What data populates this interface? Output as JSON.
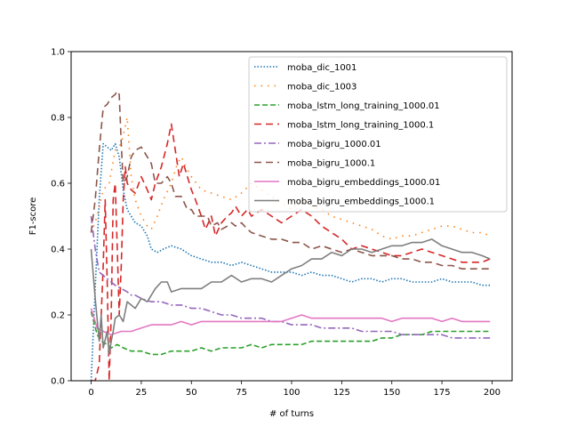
{
  "chart_data": {
    "type": "line",
    "xlabel": "# of turns",
    "ylabel": "F1-score",
    "xlim": [
      -10,
      210
    ],
    "ylim": [
      0.0,
      1.0
    ],
    "xticks": [
      0,
      25,
      50,
      75,
      100,
      125,
      150,
      175,
      200
    ],
    "yticks": [
      0.0,
      0.2,
      0.4,
      0.6,
      0.8,
      1.0
    ],
    "xtick_labels": [
      "0",
      "25",
      "50",
      "75",
      "100",
      "125",
      "150",
      "175",
      "200"
    ],
    "ytick_labels": [
      "0.0",
      "0.2",
      "0.4",
      "0.6",
      "0.8",
      "1.0"
    ],
    "grid": false,
    "legend_position": "upper right",
    "series": [
      {
        "name": "moba_dic_1001",
        "color": "#1f77b4",
        "dash": "dotted",
        "x": [
          0,
          2,
          4,
          6,
          8,
          10,
          12,
          14,
          16,
          18,
          20,
          22,
          25,
          28,
          30,
          33,
          36,
          40,
          45,
          50,
          55,
          60,
          65,
          70,
          75,
          80,
          85,
          90,
          95,
          100,
          105,
          110,
          115,
          120,
          125,
          130,
          135,
          140,
          145,
          150,
          155,
          160,
          165,
          170,
          175,
          180,
          185,
          190,
          195,
          199
        ],
        "y": [
          0.0,
          0.28,
          0.55,
          0.72,
          0.71,
          0.7,
          0.72,
          0.68,
          0.58,
          0.52,
          0.5,
          0.48,
          0.47,
          0.44,
          0.4,
          0.39,
          0.4,
          0.41,
          0.4,
          0.38,
          0.37,
          0.36,
          0.36,
          0.35,
          0.36,
          0.35,
          0.34,
          0.33,
          0.33,
          0.33,
          0.32,
          0.33,
          0.32,
          0.32,
          0.31,
          0.3,
          0.31,
          0.31,
          0.3,
          0.31,
          0.31,
          0.3,
          0.3,
          0.3,
          0.31,
          0.3,
          0.3,
          0.3,
          0.29,
          0.29
        ]
      },
      {
        "name": "moba_dic_1003",
        "color": "#ff7f0e",
        "dash": "dotted-sparse",
        "x": [
          0,
          3,
          6,
          9,
          12,
          15,
          18,
          20,
          22,
          25,
          28,
          30,
          33,
          36,
          40,
          43,
          45,
          48,
          50,
          55,
          60,
          65,
          70,
          75,
          80,
          85,
          90,
          95,
          100,
          105,
          110,
          115,
          120,
          125,
          130,
          135,
          140,
          145,
          150,
          155,
          160,
          165,
          170,
          175,
          180,
          185,
          190,
          195,
          199
        ],
        "y": [
          0.45,
          0.5,
          0.58,
          0.6,
          0.7,
          0.72,
          0.8,
          0.62,
          0.55,
          0.5,
          0.47,
          0.46,
          0.5,
          0.55,
          0.6,
          0.66,
          0.68,
          0.64,
          0.62,
          0.58,
          0.57,
          0.56,
          0.55,
          0.57,
          0.6,
          0.58,
          0.56,
          0.54,
          0.52,
          0.55,
          0.53,
          0.52,
          0.5,
          0.49,
          0.48,
          0.47,
          0.46,
          0.44,
          0.43,
          0.44,
          0.44,
          0.45,
          0.46,
          0.47,
          0.47,
          0.46,
          0.45,
          0.45,
          0.44
        ]
      },
      {
        "name": "moba_lstm_long_training_1000.01",
        "color": "#2ca02c",
        "dash": "dashed",
        "x": [
          0,
          3,
          5,
          8,
          10,
          13,
          16,
          20,
          25,
          30,
          35,
          40,
          45,
          50,
          55,
          60,
          65,
          70,
          75,
          80,
          85,
          90,
          95,
          100,
          105,
          110,
          115,
          120,
          125,
          130,
          135,
          140,
          145,
          150,
          155,
          160,
          165,
          170,
          175,
          180,
          185,
          190,
          195,
          199
        ],
        "y": [
          0.21,
          0.14,
          0.12,
          0.11,
          0.1,
          0.11,
          0.1,
          0.09,
          0.09,
          0.08,
          0.08,
          0.09,
          0.09,
          0.09,
          0.1,
          0.09,
          0.1,
          0.1,
          0.1,
          0.11,
          0.1,
          0.11,
          0.11,
          0.11,
          0.11,
          0.12,
          0.12,
          0.12,
          0.12,
          0.12,
          0.12,
          0.12,
          0.13,
          0.13,
          0.14,
          0.14,
          0.14,
          0.15,
          0.15,
          0.15,
          0.15,
          0.15,
          0.15,
          0.15
        ]
      },
      {
        "name": "moba_lstm_long_training_1000.1",
        "color": "#d62728",
        "dash": "dashed-long",
        "x": [
          0,
          2,
          4,
          6,
          7,
          8,
          9,
          10,
          11,
          12,
          13,
          14,
          15,
          16,
          17,
          18,
          20,
          22,
          25,
          28,
          30,
          32,
          35,
          38,
          40,
          42,
          44,
          46,
          48,
          50,
          52,
          55,
          57,
          60,
          62,
          65,
          68,
          70,
          72,
          75,
          78,
          80,
          85,
          90,
          95,
          100,
          105,
          110,
          115,
          120,
          125,
          130,
          135,
          140,
          145,
          150,
          155,
          160,
          165,
          170,
          175,
          180,
          185,
          190,
          195,
          199
        ],
        "y": [
          0.0,
          0.0,
          0.05,
          0.35,
          0.55,
          0.3,
          0.0,
          0.2,
          0.55,
          0.6,
          0.4,
          0.2,
          0.35,
          0.55,
          0.65,
          0.6,
          0.58,
          0.57,
          0.62,
          0.58,
          0.55,
          0.6,
          0.65,
          0.72,
          0.78,
          0.7,
          0.62,
          0.66,
          0.62,
          0.58,
          0.55,
          0.5,
          0.46,
          0.5,
          0.44,
          0.48,
          0.5,
          0.51,
          0.53,
          0.5,
          0.52,
          0.5,
          0.52,
          0.5,
          0.48,
          0.5,
          0.52,
          0.5,
          0.47,
          0.45,
          0.43,
          0.4,
          0.41,
          0.4,
          0.39,
          0.38,
          0.38,
          0.39,
          0.4,
          0.39,
          0.38,
          0.37,
          0.36,
          0.36,
          0.36,
          0.37
        ]
      },
      {
        "name": "moba_bigru_1000.01",
        "color": "#9467bd",
        "dash": "dashdot",
        "x": [
          0,
          2,
          4,
          6,
          8,
          10,
          12,
          15,
          18,
          20,
          22,
          25,
          30,
          35,
          40,
          45,
          50,
          55,
          60,
          65,
          70,
          75,
          80,
          85,
          90,
          95,
          100,
          105,
          110,
          115,
          120,
          125,
          130,
          135,
          140,
          145,
          150,
          155,
          160,
          165,
          170,
          175,
          180,
          185,
          190,
          195,
          199
        ],
        "y": [
          0.5,
          0.4,
          0.33,
          0.32,
          0.31,
          0.3,
          0.29,
          0.28,
          0.27,
          0.26,
          0.26,
          0.25,
          0.24,
          0.24,
          0.23,
          0.23,
          0.22,
          0.22,
          0.21,
          0.2,
          0.2,
          0.19,
          0.19,
          0.19,
          0.18,
          0.18,
          0.17,
          0.17,
          0.17,
          0.16,
          0.16,
          0.16,
          0.16,
          0.15,
          0.15,
          0.15,
          0.15,
          0.14,
          0.14,
          0.14,
          0.14,
          0.14,
          0.13,
          0.13,
          0.13,
          0.13,
          0.13
        ]
      },
      {
        "name": "moba_bigru_1000.1",
        "color": "#8c564b",
        "dash": "dashed-long",
        "x": [
          0,
          2,
          4,
          6,
          8,
          10,
          12,
          13,
          14,
          15,
          16,
          18,
          20,
          22,
          25,
          28,
          30,
          32,
          35,
          38,
          40,
          42,
          45,
          48,
          50,
          52,
          55,
          58,
          60,
          63,
          65,
          68,
          70,
          72,
          75,
          78,
          80,
          85,
          90,
          95,
          100,
          105,
          110,
          115,
          120,
          125,
          130,
          135,
          140,
          145,
          150,
          155,
          160,
          165,
          170,
          175,
          180,
          185,
          190,
          195,
          199
        ],
        "y": [
          0.45,
          0.55,
          0.7,
          0.83,
          0.84,
          0.86,
          0.87,
          0.88,
          0.87,
          0.72,
          0.6,
          0.62,
          0.68,
          0.7,
          0.71,
          0.68,
          0.66,
          0.6,
          0.6,
          0.62,
          0.6,
          0.56,
          0.56,
          0.52,
          0.52,
          0.5,
          0.5,
          0.5,
          0.47,
          0.48,
          0.46,
          0.47,
          0.48,
          0.47,
          0.48,
          0.46,
          0.45,
          0.44,
          0.43,
          0.43,
          0.42,
          0.42,
          0.4,
          0.41,
          0.4,
          0.39,
          0.4,
          0.39,
          0.38,
          0.38,
          0.38,
          0.37,
          0.37,
          0.36,
          0.36,
          0.35,
          0.35,
          0.34,
          0.34,
          0.34,
          0.34
        ]
      },
      {
        "name": "moba_bigru_embeddings_1000.01",
        "color": "#e377c2",
        "dash": "solid",
        "x": [
          0,
          3,
          6,
          10,
          15,
          20,
          25,
          30,
          35,
          40,
          45,
          50,
          55,
          60,
          65,
          70,
          75,
          80,
          85,
          90,
          95,
          100,
          105,
          110,
          115,
          120,
          125,
          130,
          135,
          140,
          145,
          150,
          155,
          160,
          165,
          170,
          175,
          180,
          185,
          190,
          195,
          199
        ],
        "y": [
          0.22,
          0.16,
          0.15,
          0.14,
          0.15,
          0.15,
          0.16,
          0.17,
          0.17,
          0.17,
          0.18,
          0.17,
          0.18,
          0.18,
          0.18,
          0.18,
          0.18,
          0.18,
          0.18,
          0.18,
          0.18,
          0.19,
          0.2,
          0.19,
          0.19,
          0.19,
          0.19,
          0.19,
          0.19,
          0.19,
          0.19,
          0.18,
          0.19,
          0.19,
          0.19,
          0.19,
          0.18,
          0.19,
          0.18,
          0.18,
          0.18,
          0.18
        ]
      },
      {
        "name": "moba_bigru_embeddings_1000.1",
        "color": "#7f7f7f",
        "dash": "solid",
        "x": [
          0,
          2,
          4,
          5,
          6,
          8,
          9,
          10,
          11,
          12,
          14,
          16,
          18,
          20,
          22,
          25,
          28,
          30,
          32,
          35,
          38,
          40,
          45,
          50,
          55,
          60,
          65,
          70,
          75,
          80,
          85,
          90,
          95,
          100,
          105,
          110,
          115,
          120,
          125,
          130,
          135,
          140,
          145,
          150,
          155,
          160,
          165,
          170,
          175,
          180,
          185,
          190,
          195,
          199
        ],
        "y": [
          0.4,
          0.25,
          0.12,
          0.2,
          0.1,
          0.15,
          0.08,
          0.12,
          0.15,
          0.19,
          0.2,
          0.18,
          0.24,
          0.23,
          0.22,
          0.25,
          0.24,
          0.26,
          0.28,
          0.3,
          0.3,
          0.27,
          0.28,
          0.28,
          0.28,
          0.3,
          0.3,
          0.32,
          0.3,
          0.31,
          0.31,
          0.3,
          0.32,
          0.34,
          0.35,
          0.37,
          0.37,
          0.39,
          0.38,
          0.4,
          0.4,
          0.39,
          0.4,
          0.41,
          0.41,
          0.42,
          0.42,
          0.43,
          0.41,
          0.4,
          0.39,
          0.39,
          0.38,
          0.37
        ]
      }
    ]
  }
}
